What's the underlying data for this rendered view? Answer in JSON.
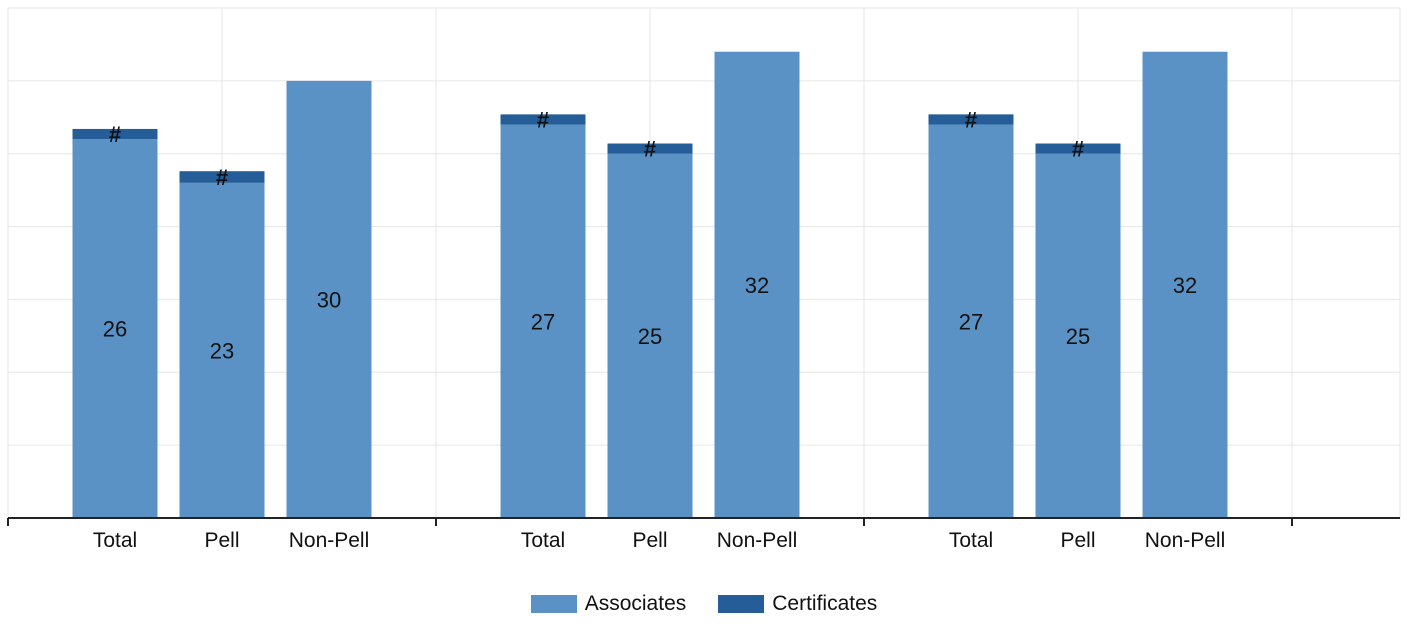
{
  "chart_data": {
    "type": "bar",
    "stacked": true,
    "groups": [
      {
        "categories": [
          "Total",
          "Pell",
          "Non-Pell"
        ]
      },
      {
        "categories": [
          "Total",
          "Pell",
          "Non-Pell"
        ]
      },
      {
        "categories": [
          "Total",
          "Pell",
          "Non-Pell"
        ]
      }
    ],
    "series": [
      {
        "name": "Associates",
        "color": "#5b92c6",
        "values": [
          [
            26,
            23,
            30
          ],
          [
            27,
            25,
            32
          ],
          [
            27,
            25,
            32
          ]
        ],
        "labels": [
          [
            "26",
            "23",
            "30"
          ],
          [
            "27",
            "25",
            "32"
          ],
          [
            "27",
            "25",
            "32"
          ]
        ]
      },
      {
        "name": "Certificates",
        "color": "#245d98",
        "values": [
          [
            0.7,
            0.8,
            0
          ],
          [
            0.7,
            0.7,
            0
          ],
          [
            0.7,
            0.7,
            0
          ]
        ],
        "labels": [
          [
            "#",
            "#",
            ""
          ],
          [
            "#",
            "#",
            ""
          ],
          [
            "#",
            "#",
            ""
          ]
        ]
      }
    ],
    "ylim": [
      0,
      35
    ],
    "grid": true,
    "legend_position": "bottom-center"
  }
}
